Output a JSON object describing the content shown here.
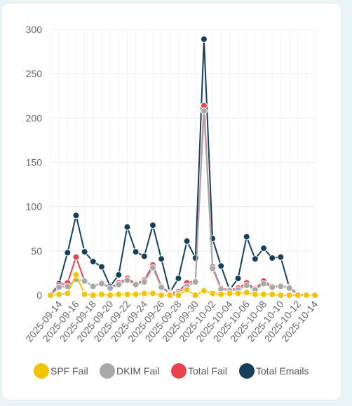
{
  "chart_data": {
    "type": "line",
    "title": "",
    "xlabel": "",
    "ylabel": "",
    "ylim": [
      0,
      300
    ],
    "y_ticks": [
      "0",
      "50",
      "100",
      "150",
      "200",
      "250",
      "300"
    ],
    "x": [
      "2025-09-13",
      "2025-09-14",
      "2025-09-15",
      "2025-09-16",
      "2025-09-17",
      "2025-09-18",
      "2025-09-19",
      "2025-09-20",
      "2025-09-21",
      "2025-09-22",
      "2025-09-23",
      "2025-09-24",
      "2025-09-25",
      "2025-09-26",
      "2025-09-27",
      "2025-09-28",
      "2025-09-29",
      "2025-09-30",
      "2025-10-01",
      "2025-10-02",
      "2025-10-03",
      "2025-10-04",
      "2025-10-05",
      "2025-10-06",
      "2025-10-07",
      "2025-10-08",
      "2025-10-09",
      "2025-10-10",
      "2025-10-11",
      "2025-10-12",
      "2025-10-13",
      "2025-10-14"
    ],
    "x_tick_labels": [
      "2025-09-14",
      "2025-09-16",
      "2025-09-18",
      "2025-09-20",
      "2025-09-22",
      "2025-09-24",
      "2025-09-26",
      "2025-09-28",
      "2025-09-30",
      "2025-10-02",
      "2025-10-04",
      "2025-10-06",
      "2025-10-08",
      "2025-10-10",
      "2025-10-12",
      "2025-10-14"
    ],
    "grid": true,
    "legend_position": "bottom",
    "series": [
      {
        "name": "SPF Fail",
        "color": "#f2c400",
        "values": [
          0,
          1,
          2,
          23,
          1,
          0,
          1,
          0,
          1,
          1,
          1,
          2,
          2,
          0,
          0,
          0,
          6,
          0,
          5,
          2,
          1,
          2,
          2,
          3,
          1,
          1,
          1,
          0,
          0,
          0,
          0,
          0
        ]
      },
      {
        "name": "DKIM Fail",
        "color": "#a8a8a8",
        "values": [
          0,
          9,
          10,
          18,
          16,
          10,
          13,
          8,
          12,
          17,
          12,
          15,
          31,
          9,
          1,
          2,
          10,
          15,
          208,
          30,
          7,
          5,
          6,
          11,
          6,
          13,
          9,
          10,
          8,
          0,
          0,
          0
        ]
      },
      {
        "name": "Total Fail",
        "color": "#e8424e",
        "values": [
          0,
          11,
          14,
          43,
          16,
          10,
          14,
          8,
          14,
          19,
          13,
          17,
          34,
          10,
          2,
          4,
          14,
          16,
          214,
          32,
          8,
          6,
          8,
          14,
          7,
          16,
          10,
          10,
          9,
          1,
          0,
          0
        ]
      },
      {
        "name": "Total Emails",
        "color": "#163f5b",
        "values": [
          0,
          13,
          48,
          90,
          49,
          38,
          32,
          10,
          23,
          77,
          49,
          44,
          79,
          41,
          3,
          19,
          61,
          42,
          289,
          64,
          33,
          6,
          19,
          66,
          41,
          53,
          42,
          43,
          9,
          1,
          0,
          0
        ]
      }
    ]
  }
}
